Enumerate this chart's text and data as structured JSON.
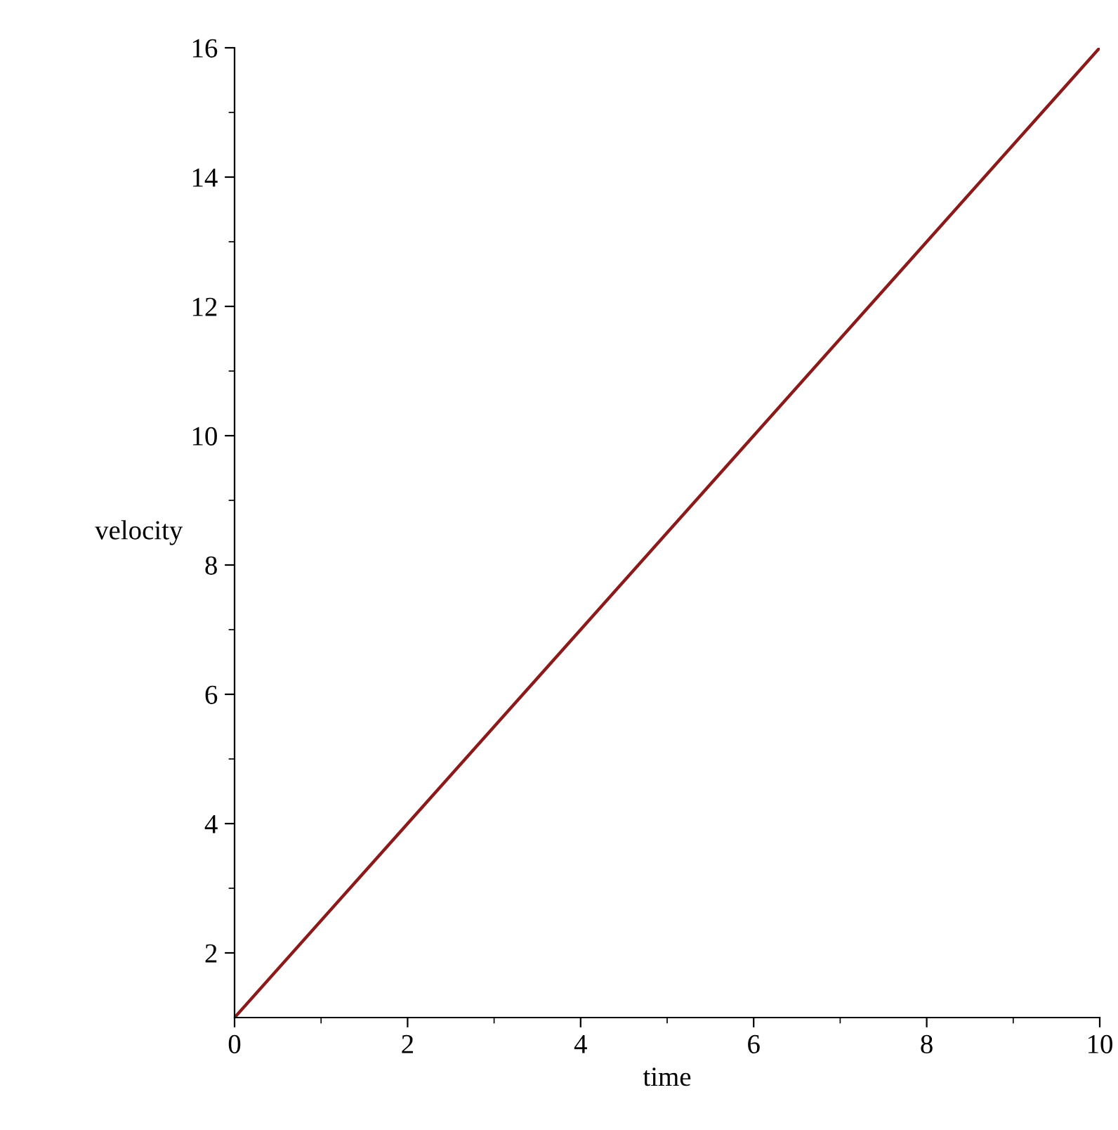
{
  "chart_data": {
    "type": "line",
    "xlabel": "time",
    "ylabel": "velocity",
    "x": [
      0,
      10
    ],
    "series": [
      {
        "color": "#8b1a1a",
        "values": [
          1,
          16
        ]
      }
    ],
    "xlim": [
      0,
      10
    ],
    "ylim": [
      1,
      16
    ],
    "xticks": [
      0,
      2,
      4,
      6,
      8,
      10
    ],
    "yticks": [
      2,
      4,
      6,
      8,
      10,
      12,
      14,
      16
    ],
    "grid": false,
    "legend": false,
    "marker": "none",
    "line_style": "solid"
  }
}
